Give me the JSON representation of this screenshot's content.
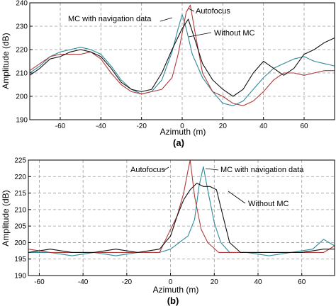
{
  "chart_data": [
    {
      "type": "line",
      "panel": "(a)",
      "xlabel": "Azimuth (m)",
      "ylabel": "Amplitude (dB)",
      "xlim": [
        -75,
        75
      ],
      "ylim": [
        190,
        240
      ],
      "xticks": [
        -60,
        -40,
        -20,
        0,
        20,
        40,
        60
      ],
      "yticks": [
        190,
        200,
        210,
        220,
        230,
        240
      ],
      "grid": true,
      "annotations": [
        "MC with navigation data",
        "Autofocus",
        "Without MC"
      ],
      "series": [
        {
          "name": "MC with navigation data",
          "color": "#2e8b9a",
          "points": [
            [
              -75,
              210
            ],
            [
              -70,
              213
            ],
            [
              -65,
              217
            ],
            [
              -60,
              219
            ],
            [
              -55,
              220
            ],
            [
              -50,
              221
            ],
            [
              -45,
              220
            ],
            [
              -40,
              218
            ],
            [
              -35,
              213
            ],
            [
              -30,
              207
            ],
            [
              -25,
              203
            ],
            [
              -20,
              201
            ],
            [
              -15,
              202
            ],
            [
              -10,
              207
            ],
            [
              -5,
              219
            ],
            [
              -2,
              229
            ],
            [
              0,
              235
            ],
            [
              2,
              229
            ],
            [
              5,
              218
            ],
            [
              10,
              208
            ],
            [
              15,
              202
            ],
            [
              20,
              197
            ],
            [
              25,
              196
            ],
            [
              30,
              198
            ],
            [
              35,
              203
            ],
            [
              40,
              208
            ],
            [
              45,
              212
            ],
            [
              50,
              214
            ],
            [
              55,
              216
            ],
            [
              60,
              217
            ],
            [
              65,
              215
            ],
            [
              70,
              214
            ],
            [
              75,
              213
            ]
          ]
        },
        {
          "name": "Autofocus",
          "color": "#b03a3a",
          "points": [
            [
              -75,
              211
            ],
            [
              -70,
              214
            ],
            [
              -65,
              217
            ],
            [
              -60,
              218
            ],
            [
              -55,
              218
            ],
            [
              -50,
              218
            ],
            [
              -45,
              219
            ],
            [
              -40,
              216
            ],
            [
              -35,
              210
            ],
            [
              -30,
              205
            ],
            [
              -25,
              202
            ],
            [
              -20,
              201
            ],
            [
              -15,
              202
            ],
            [
              -10,
              203
            ],
            [
              -5,
              208
            ],
            [
              -2,
              218
            ],
            [
              2,
              236
            ],
            [
              4,
              239
            ],
            [
              6,
              229
            ],
            [
              10,
              210
            ],
            [
              15,
              202
            ],
            [
              20,
              200
            ],
            [
              25,
              197
            ],
            [
              30,
              196
            ],
            [
              35,
              198
            ],
            [
              40,
              202
            ],
            [
              45,
              207
            ],
            [
              50,
              210
            ],
            [
              55,
              210
            ],
            [
              60,
              209
            ],
            [
              65,
              210
            ],
            [
              70,
              211
            ],
            [
              75,
              211
            ]
          ]
        },
        {
          "name": "Without MC",
          "color": "#111111",
          "points": [
            [
              -75,
              209
            ],
            [
              -70,
              212
            ],
            [
              -65,
              216
            ],
            [
              -60,
              217
            ],
            [
              -55,
              219
            ],
            [
              -50,
              220
            ],
            [
              -45,
              219
            ],
            [
              -40,
              217
            ],
            [
              -35,
              212
            ],
            [
              -30,
              206
            ],
            [
              -25,
              203
            ],
            [
              -20,
              202
            ],
            [
              -15,
              203
            ],
            [
              -10,
              210
            ],
            [
              -5,
              220
            ],
            [
              0,
              229
            ],
            [
              3,
              233
            ],
            [
              6,
              225
            ],
            [
              10,
              214
            ],
            [
              15,
              207
            ],
            [
              20,
              203
            ],
            [
              25,
              200
            ],
            [
              30,
              203
            ],
            [
              35,
              210
            ],
            [
              40,
              215
            ],
            [
              45,
              212
            ],
            [
              50,
              209
            ],
            [
              55,
              212
            ],
            [
              60,
              218
            ],
            [
              65,
              220
            ],
            [
              70,
              223
            ],
            [
              75,
              225
            ]
          ]
        }
      ]
    },
    {
      "type": "line",
      "panel": "(b)",
      "xlabel": "Azimuth (m)",
      "ylabel": "Amplitude (dB)",
      "xlim": [
        -65,
        75
      ],
      "ylim": [
        190,
        225
      ],
      "xticks": [
        -60,
        -40,
        -20,
        0,
        20,
        40,
        60
      ],
      "yticks": [
        190,
        195,
        200,
        205,
        210,
        215,
        220,
        225
      ],
      "grid": true,
      "annotations": [
        "Autofocus",
        "MC with navigation data",
        "Without MC"
      ],
      "series": [
        {
          "name": "MC with navigation data",
          "color": "#2e8b9a",
          "points": [
            [
              -65,
              197
            ],
            [
              -55,
              197
            ],
            [
              -45,
              196
            ],
            [
              -35,
              197
            ],
            [
              -25,
              196
            ],
            [
              -15,
              197
            ],
            [
              -5,
              197
            ],
            [
              0,
              198
            ],
            [
              4,
              200
            ],
            [
              8,
              202
            ],
            [
              11,
              207
            ],
            [
              13,
              217
            ],
            [
              15,
              223
            ],
            [
              17,
              216
            ],
            [
              20,
              206
            ],
            [
              23,
              200
            ],
            [
              27,
              197
            ],
            [
              35,
              197
            ],
            [
              45,
              196
            ],
            [
              55,
              197
            ],
            [
              65,
              198
            ],
            [
              70,
              201
            ],
            [
              75,
              199
            ]
          ]
        },
        {
          "name": "Autofocus",
          "color": "#b03a3a",
          "points": [
            [
              -65,
              198
            ],
            [
              -55,
              197
            ],
            [
              -45,
              197
            ],
            [
              -35,
              197
            ],
            [
              -25,
              197
            ],
            [
              -15,
              197
            ],
            [
              -5,
              197
            ],
            [
              0,
              204
            ],
            [
              3,
              208
            ],
            [
              6,
              215
            ],
            [
              8,
              222
            ],
            [
              9,
              225
            ],
            [
              11,
              214
            ],
            [
              14,
              204
            ],
            [
              17,
              200
            ],
            [
              22,
              197
            ],
            [
              30,
              197
            ],
            [
              40,
              197
            ],
            [
              50,
              197
            ],
            [
              60,
              197
            ],
            [
              70,
              197
            ],
            [
              75,
              199
            ]
          ]
        },
        {
          "name": "Without MC",
          "color": "#111111",
          "points": [
            [
              -65,
              197
            ],
            [
              -55,
              198
            ],
            [
              -45,
              197
            ],
            [
              -35,
              197
            ],
            [
              -25,
              198
            ],
            [
              -15,
              197
            ],
            [
              -5,
              198
            ],
            [
              0,
              202
            ],
            [
              3,
              208
            ],
            [
              6,
              213
            ],
            [
              9,
              216
            ],
            [
              12,
              218
            ],
            [
              15,
              217
            ],
            [
              18,
              217
            ],
            [
              21,
              216
            ],
            [
              24,
              208
            ],
            [
              27,
              200
            ],
            [
              32,
              197
            ],
            [
              40,
              197
            ],
            [
              50,
              197
            ],
            [
              60,
              197
            ],
            [
              70,
              198
            ],
            [
              75,
              198
            ]
          ]
        }
      ]
    }
  ]
}
